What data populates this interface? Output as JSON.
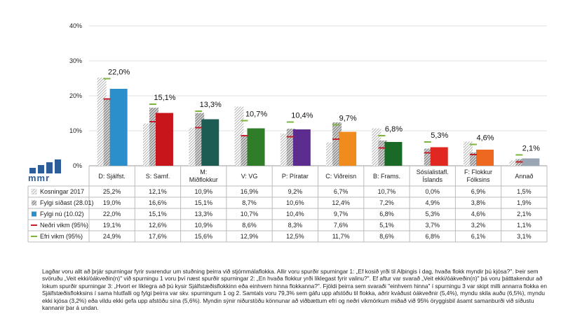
{
  "chart_data": {
    "type": "bar",
    "ylim": [
      0,
      40
    ],
    "yticks": [
      "0%",
      "10%",
      "20%",
      "30%",
      "40%"
    ],
    "categories": [
      "D: Sjálfst.",
      "S: Samf.",
      "M: Miðflokkur",
      "V: VG",
      "P: Píratar",
      "C: Viðreisn",
      "B: Frams.",
      "Sósíalistafl. Íslands",
      "F: Flokkur Fólksins",
      "Annað"
    ],
    "category_lines": [
      [
        "D: Sjálfst."
      ],
      [
        "S: Samf."
      ],
      [
        "M:",
        "Miðflokkur"
      ],
      [
        "V: VG"
      ],
      [
        "P: Píratar"
      ],
      [
        "C: Viðreisn"
      ],
      [
        "B: Frams."
      ],
      [
        "Sósíalistafl.",
        "Íslands"
      ],
      [
        "F: Flokkur",
        "Fólksins"
      ],
      [
        "Annað"
      ]
    ],
    "series": [
      {
        "name": "Kosningar 2017",
        "values": [
          25.2,
          12.1,
          10.9,
          16.9,
          9.2,
          6.7,
          10.7,
          0.0,
          6.9,
          1.5
        ]
      },
      {
        "name": "Fylgi síðast (28.01)",
        "values": [
          19.0,
          16.6,
          15.1,
          8.7,
          10.6,
          12.4,
          7.2,
          4.9,
          3.8,
          1.9
        ]
      },
      {
        "name": "Fylgi nú (10.02)",
        "values": [
          22.0,
          15.1,
          13.3,
          10.7,
          10.4,
          9.7,
          6.8,
          5.3,
          4.6,
          2.1
        ]
      },
      {
        "name": "Neðri vikm (95%)",
        "values": [
          19.1,
          12.6,
          10.9,
          8.6,
          8.3,
          7.6,
          5.1,
          3.7,
          3.2,
          1.1
        ]
      },
      {
        "name": "Efri vikm (95%)",
        "values": [
          24.9,
          17.6,
          15.6,
          12.9,
          12.5,
          11.7,
          8.6,
          6.8,
          6.1,
          3.1
        ]
      }
    ],
    "table_rows": [
      [
        "25,2%",
        "12,1%",
        "10,9%",
        "16,9%",
        "9,2%",
        "6,7%",
        "10,7%",
        "0,0%",
        "6,9%",
        "1,5%"
      ],
      [
        "19,0%",
        "16,6%",
        "15,1%",
        "8,7%",
        "10,6%",
        "12,4%",
        "7,2%",
        "4,9%",
        "3,8%",
        "1,9%"
      ],
      [
        "22,0%",
        "15,1%",
        "13,3%",
        "10,7%",
        "10,4%",
        "9,7%",
        "6,8%",
        "5,3%",
        "4,6%",
        "2,1%"
      ],
      [
        "19,1%",
        "12,6%",
        "10,9%",
        "8,6%",
        "8,3%",
        "7,6%",
        "5,1%",
        "3,7%",
        "3,2%",
        "1,1%"
      ],
      [
        "24,9%",
        "17,6%",
        "15,6%",
        "12,9%",
        "12,5%",
        "11,7%",
        "8,6%",
        "6,8%",
        "6,1%",
        "3,1%"
      ]
    ],
    "data_labels": [
      "22,0%",
      "15,1%",
      "13,3%",
      "10,7%",
      "10,4%",
      "9,7%",
      "6,8%",
      "5,3%",
      "4,6%",
      "2,1%"
    ],
    "current_colors": [
      "#2a8fcb",
      "#c8141b",
      "#1c5c52",
      "#2f7d28",
      "#5c2d8e",
      "#f08c1e",
      "#1a6a27",
      "#e02820",
      "#ef6820",
      "#9aa6b4"
    ],
    "lower_color": "#c0202a",
    "upper_color": "#7db53c"
  },
  "logo": {
    "text": "mmr"
  },
  "footnote": "Lagðar voru allt að þrjár spurningar fyrir svarendur um stuðning þeirra við stjórnmálaflokka. Allir voru spurðir spurningar 1: „Ef kosið yrði til Alþingis í dag, hvaða flokk myndir þú kjósa?\". Þeir sem svöruðu „Veit ekki/óákveðin(n)\" við spurningu 1 voru því næst spurðir spurningar 2: „En hvaða flokkur yrði líklegast fyrir valinu?\". Ef aftur var svarað „Veit ekki/óákveðin(n)\" þá voru þátttakendur að lokum spurðir spurningar 3: „Hvort er líklegra að þú kysir Sjálfstæðisflokkinn eða einhvern hinna flokkanna?\". Fjöldi þeirra sem svaraði \"einhvern hinna\" í spurningu 3 var skipt milli annarra flokka en Sjálfstæðisflokksins í sama hlutfalli og fylgi þeirra var skv. spurningum 1 og 2. Samtals voru 79,3% sem gáfu upp afstöðu til flokka, aðrir kváðust óákveðnir (5,4%), myndu skila auðu (6,5%), myndu ekki kjósa (3,2%) eða vildu ekki gefa upp afstöðu sína (5,6%). Myndin sýnir niðurstöðu könnunar að viðbættum efri og neðri vikmörkum miðað við 95% öryggisbil ásamt samanburði við síðustu kannanir þar á undan."
}
